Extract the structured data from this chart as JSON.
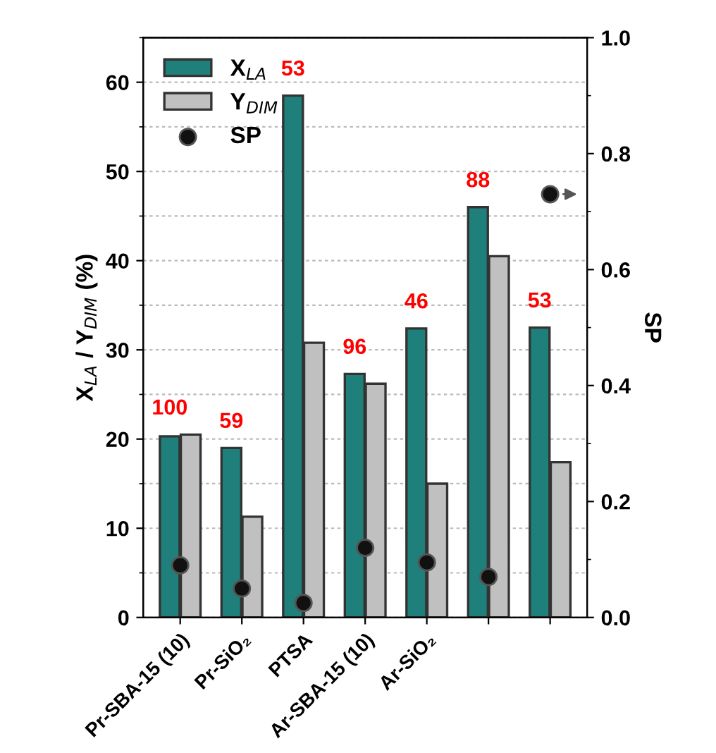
{
  "chart_data": {
    "type": "bar",
    "categories": [
      "Pr-SBA-15 (10)",
      "Pr-SiO₂",
      "PTSA",
      "Ar-SBA-15 (10)",
      "Ar-SiO₂",
      null,
      null
    ],
    "series": [
      {
        "name": "X$_{LA}$",
        "color": "#1f7f7a",
        "values": [
          20.3,
          19.0,
          58.5,
          27.3,
          32.4,
          46.0,
          32.5
        ]
      },
      {
        "name": "Y$_{DIM}$",
        "color": "#c0c0c0",
        "values": [
          20.5,
          11.3,
          30.8,
          26.2,
          15.0,
          40.5,
          17.4
        ]
      },
      {
        "name": "SP",
        "type": "scatter",
        "axis": "y2",
        "color": "#111111",
        "marker": "circle",
        "values": [
          0.09,
          0.05,
          0.025,
          0.12,
          0.095,
          0.07,
          0.73
        ]
      }
    ],
    "ylabel": "X$_{LA}$ / Y$_{DIM}$ (%)",
    "y2label": "SP",
    "ylim": [
      0,
      65
    ],
    "yticks": [
      0,
      10,
      20,
      30,
      40,
      50,
      60
    ],
    "y2lim": [
      0,
      1
    ],
    "y2ticks": [
      {
        "value": 0,
        "label": "0.0"
      },
      0.2,
      0.4,
      0.6,
      0.8,
      {
        "value": 1,
        "label": "1.0"
      }
    ],
    "annotations": [
      {
        "text": "100",
        "x": "Pr-SBA-15 (10)",
        "y": 20.5
      },
      {
        "text": "59",
        "x": "Pr-SiO₂",
        "y": 19.0
      },
      {
        "text": "53",
        "x": "PTSA",
        "y": 58.5
      },
      {
        "text": "96",
        "x": "Ar-SBA-15 (10)",
        "y": 27.3
      },
      {
        "text": "46",
        "x": "Ar-SiO₂",
        "y": 32.4
      },
      {
        "text": "88",
        "y": 46.0
      },
      {
        "text": "53",
        "y": 32.5
      }
    ],
    "grid": "y",
    "legend": "top left"
  }
}
